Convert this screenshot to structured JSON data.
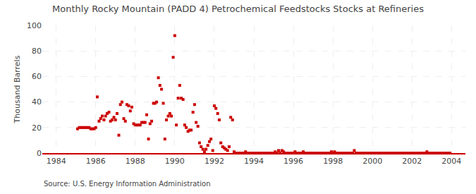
{
  "chart_data": {
    "type": "scatter",
    "title": "Monthly Rocky Mountain (PADD 4) Petrochemical Feedstocks Stocks at Refineries",
    "ylabel": "Thousand Barrels",
    "annotations": [
      "Source: U.S. Energy Information Administration"
    ],
    "color": "#cc0000",
    "marker": "square",
    "grid": true,
    "xlim": [
      1983.3,
      2004.7
    ],
    "xticks": [
      1984,
      1986,
      1988,
      1990,
      1992,
      1994,
      1996,
      1998,
      2000,
      2002,
      2004
    ],
    "ylim": [
      0,
      100
    ],
    "yticks": [
      0,
      20,
      40,
      60,
      80,
      100
    ],
    "x": [
      1985.08,
      1985.17,
      1985.25,
      1985.33,
      1985.42,
      1985.5,
      1985.58,
      1985.67,
      1985.75,
      1985.83,
      1985.92,
      1986.0,
      1986.08,
      1986.17,
      1986.25,
      1986.33,
      1986.42,
      1986.5,
      1986.58,
      1986.67,
      1986.75,
      1986.83,
      1986.92,
      1987.0,
      1987.08,
      1987.17,
      1987.25,
      1987.33,
      1987.42,
      1987.5,
      1987.58,
      1987.67,
      1987.75,
      1987.83,
      1987.92,
      1988.0,
      1988.08,
      1988.17,
      1988.25,
      1988.33,
      1988.42,
      1988.5,
      1988.58,
      1988.67,
      1988.75,
      1988.83,
      1988.92,
      1989.0,
      1989.08,
      1989.17,
      1989.25,
      1989.33,
      1989.42,
      1989.5,
      1989.58,
      1989.67,
      1989.75,
      1989.83,
      1989.92,
      1990.0,
      1990.08,
      1990.17,
      1990.25,
      1990.33,
      1990.42,
      1990.5,
      1990.58,
      1990.67,
      1990.75,
      1990.83,
      1990.92,
      1991.0,
      1991.08,
      1991.17,
      1991.25,
      1991.33,
      1991.42,
      1991.5,
      1991.58,
      1991.67,
      1991.75,
      1991.83,
      1991.92,
      1992.0,
      1992.08,
      1992.17,
      1992.25,
      1992.33,
      1992.42,
      1992.5,
      1992.58,
      1992.67,
      1992.75,
      1992.83,
      1992.92,
      1993.0,
      1993.08,
      1993.17,
      1993.25,
      1993.33,
      1993.42,
      1993.5,
      1993.58,
      1993.67,
      1993.75,
      1993.83,
      1993.92,
      1994.0,
      1994.08,
      1994.17,
      1994.25,
      1994.33,
      1994.42,
      1994.5,
      1994.58,
      1994.67,
      1994.75,
      1994.83,
      1994.92,
      1995.0,
      1995.08,
      1995.17,
      1995.25,
      1995.33,
      1995.42,
      1995.5,
      1995.58,
      1995.67,
      1995.75,
      1995.83,
      1995.92,
      1996.0,
      1996.08,
      1996.17,
      1996.25,
      1996.33,
      1996.42,
      1996.5,
      1996.58,
      1996.67,
      1996.75,
      1996.83,
      1996.92,
      1997.0,
      1997.08,
      1997.17,
      1997.25,
      1997.33,
      1997.42,
      1997.5,
      1997.58,
      1997.67,
      1997.75,
      1997.83,
      1997.92,
      1998.0,
      1998.08,
      1998.17,
      1998.25,
      1998.33,
      1998.42,
      1998.5,
      1998.58,
      1998.67,
      1998.75,
      1998.83,
      1998.92,
      1999.0,
      1999.08,
      1999.17,
      1999.25,
      1999.33,
      1999.42,
      1999.5,
      1999.58,
      1999.67,
      1999.75,
      1999.83,
      1999.92,
      2000.0,
      2000.08,
      2000.17,
      2000.25,
      2000.33,
      2000.42,
      2000.5,
      2000.58,
      2000.67,
      2000.75,
      2000.83,
      2000.92,
      2001.0,
      2001.08,
      2001.17,
      2001.25,
      2001.33,
      2001.42,
      2001.5,
      2001.58,
      2001.67,
      2001.75,
      2001.83,
      2001.92,
      2002.0,
      2002.08,
      2002.17,
      2002.25,
      2002.33,
      2002.42,
      2002.5,
      2002.58,
      2002.67,
      2002.75,
      2002.83,
      2002.92,
      2003.0,
      2003.08,
      2003.17,
      2003.25,
      2003.33,
      2003.42,
      2003.5,
      2003.58,
      2003.67,
      2003.75,
      2003.83,
      2003.92
    ],
    "values": [
      19,
      20,
      20,
      20,
      20,
      20,
      20,
      20,
      19,
      19,
      19,
      20,
      44,
      25,
      27,
      29,
      26,
      29,
      31,
      32,
      25,
      26,
      28,
      26,
      31,
      14,
      38,
      40,
      27,
      25,
      38,
      37,
      33,
      36,
      23,
      22,
      22,
      22,
      22,
      24,
      24,
      24,
      30,
      11,
      23,
      25,
      39,
      39,
      40,
      59,
      53,
      50,
      39,
      11,
      26,
      29,
      31,
      29,
      75,
      92,
      22,
      43,
      53,
      43,
      42,
      22,
      20,
      17,
      18,
      18,
      32,
      38,
      24,
      21,
      8,
      5,
      3,
      1,
      3,
      6,
      9,
      11,
      2,
      37,
      35,
      31,
      26,
      8,
      5,
      4,
      3,
      2,
      5,
      28,
      26,
      1,
      0,
      0,
      0,
      0,
      0,
      0,
      1,
      0,
      0,
      0,
      0,
      0,
      0,
      0,
      0,
      0,
      0,
      0,
      0,
      0,
      0,
      0,
      0,
      0,
      1,
      0,
      2,
      0,
      2,
      1,
      0,
      0,
      0,
      0,
      0,
      0,
      1,
      0,
      0,
      0,
      0,
      1,
      0,
      0,
      0,
      0,
      0,
      0,
      0,
      0,
      0,
      0,
      0,
      0,
      0,
      0,
      0,
      0,
      1,
      0,
      1,
      0,
      0,
      0,
      0,
      0,
      0,
      0,
      0,
      0,
      0,
      0,
      2,
      0,
      0,
      0,
      0,
      0,
      0,
      0,
      0,
      0,
      0,
      0,
      0,
      0,
      0,
      0,
      0,
      0,
      0,
      0,
      0,
      0,
      0,
      0,
      0,
      0,
      0,
      0,
      0,
      0,
      0,
      0,
      0,
      0,
      0,
      0,
      0,
      0,
      0,
      0,
      0,
      0,
      0,
      0,
      1,
      0,
      0,
      0,
      0,
      0,
      0,
      0,
      0,
      0,
      0,
      0,
      0,
      0,
      0
    ]
  }
}
